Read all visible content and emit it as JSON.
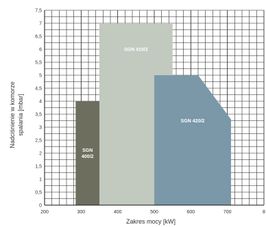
{
  "chart_data": {
    "type": "area",
    "xlabel": "Zakres mocy [kW]",
    "ylabel_lines": [
      "Nadciśnienie w komorze",
      "spalania [mbar]"
    ],
    "xlim": [
      200,
      800
    ],
    "ylim": [
      0,
      7.5
    ],
    "x_ticks": [
      "200",
      "300",
      "400",
      "500",
      "600",
      "700",
      "8"
    ],
    "y_ticks": [
      "0",
      "0,5",
      "1",
      "1,5",
      "2",
      "2,5",
      "3",
      "3,5",
      "4",
      "4,5",
      "5",
      "5,5",
      "6",
      "6,5",
      "7",
      "7,5"
    ],
    "grid": true,
    "regions": [
      {
        "name": "SGN 400/2",
        "label_lines": [
          "SGN",
          "400/2"
        ],
        "color": "#6e6e5e",
        "points": [
          [
            285,
            0
          ],
          [
            285,
            4
          ],
          [
            350,
            4
          ],
          [
            350,
            0
          ]
        ]
      },
      {
        "name": "SGN 410/2",
        "label_lines": [
          "SGN 410/2"
        ],
        "color": "#c2c9bf",
        "points": [
          [
            350,
            0
          ],
          [
            350,
            7
          ],
          [
            550,
            7
          ],
          [
            550,
            0
          ]
        ]
      },
      {
        "name": "SGN 420/2",
        "label_lines": [
          "SGN 420/2"
        ],
        "color": "#7b98a8",
        "points": [
          [
            500,
            0
          ],
          [
            500,
            5
          ],
          [
            620,
            5
          ],
          [
            710,
            3.3
          ],
          [
            710,
            0
          ]
        ]
      }
    ]
  }
}
